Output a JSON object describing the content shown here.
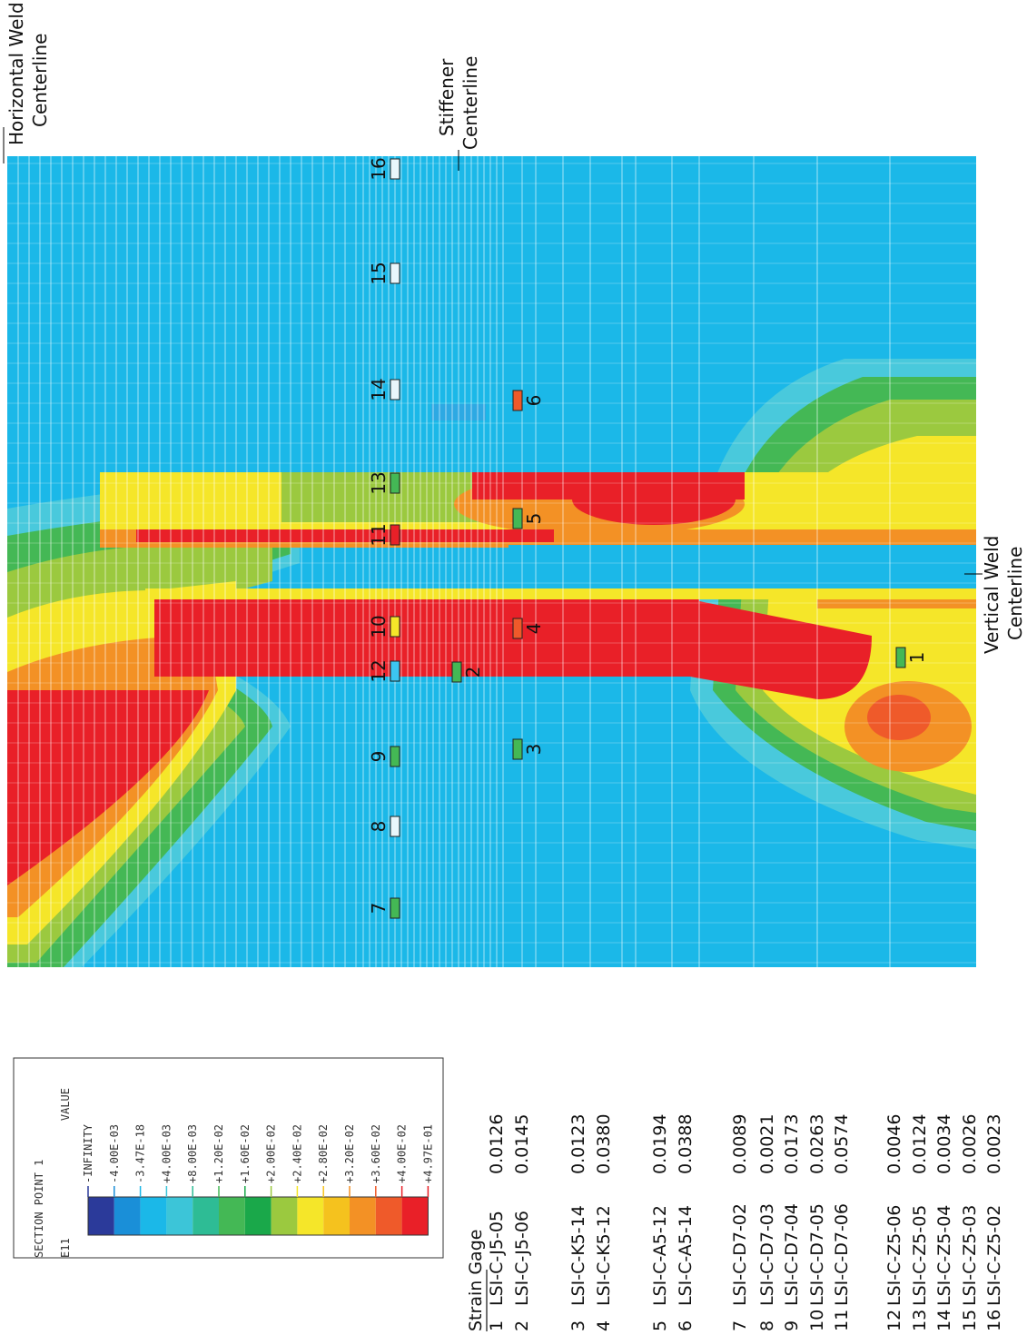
{
  "annotations": {
    "horizontal_weld": {
      "line1": "Horizontal Weld",
      "line2": "Centerline"
    },
    "stiffener": {
      "line1": "Stiffener",
      "line2": "Centerline"
    },
    "vertical_weld": {
      "line1": "Vertical Weld",
      "line2": "Centerline"
    }
  },
  "legend": {
    "section": "SECTION POINT 1",
    "variable": "E11",
    "header": "VALUE",
    "levels": [
      "-INFINITY",
      "-4.00E-03",
      "-3.47E-18",
      "+4.00E-03",
      "+8.00E-03",
      "+1.20E-02",
      "+1.60E-02",
      "+2.00E-02",
      "+2.40E-02",
      "+2.80E-02",
      "+3.20E-02",
      "+3.60E-02",
      "+4.00E-02",
      "+4.97E-01"
    ],
    "colors": [
      "#2b3a9a",
      "#1a8fd8",
      "#1bb8e8",
      "#3cc5d8",
      "#2ebc95",
      "#44b855",
      "#1aa84a",
      "#9bc93f",
      "#f5e629",
      "#f5c21e",
      "#f39125",
      "#ef5a2a",
      "#e92028"
    ]
  },
  "gage_table": {
    "heading": "Strain Gage",
    "rows": [
      {
        "id": 1,
        "name": "LSI-C-J5-05",
        "strain": "0.0126",
        "color": "#44b855"
      },
      {
        "id": 2,
        "name": "LSI-C-J5-06",
        "strain": "0.0145",
        "color": "#44b855"
      },
      {
        "id": 3,
        "name": "LSI-C-K5-14",
        "strain": "0.0123",
        "color": "#44b855"
      },
      {
        "id": 4,
        "name": "LSI-C-K5-12",
        "strain": "0.0380",
        "color": "#ef5a2a"
      },
      {
        "id": 5,
        "name": "LSI-C-A5-12",
        "strain": "0.0194",
        "color": "#44b855"
      },
      {
        "id": 6,
        "name": "LSI-C-A5-14",
        "strain": "0.0388",
        "color": "#ef5a2a"
      },
      {
        "id": 7,
        "name": "LSI-C-D7-02",
        "strain": "0.0089",
        "color": "#44b855"
      },
      {
        "id": 8,
        "name": "LSI-C-D7-03",
        "strain": "0.0021",
        "color": "#e8f6fb"
      },
      {
        "id": 9,
        "name": "LSI-C-D7-04",
        "strain": "0.0173",
        "color": "#44b855"
      },
      {
        "id": 10,
        "name": "LSI-C-D7-05",
        "strain": "0.0263",
        "color": "#f5e629"
      },
      {
        "id": 11,
        "name": "LSI-C-D7-06",
        "strain": "0.0574",
        "color": "#e92028"
      },
      {
        "id": 12,
        "name": "LSI-C-Z5-06",
        "strain": "0.0046",
        "color": "#3cc5f0"
      },
      {
        "id": 13,
        "name": "LSI-C-Z5-05",
        "strain": "0.0124",
        "color": "#44b855"
      },
      {
        "id": 14,
        "name": "LSI-C-Z5-04",
        "strain": "0.0034",
        "color": "#e8f6fb"
      },
      {
        "id": 15,
        "name": "LSI-C-Z5-03",
        "strain": "0.0026",
        "color": "#e8f6fb"
      },
      {
        "id": 16,
        "name": "LSI-C-Z5-02",
        "strain": "0.0023",
        "color": "#e8f6fb"
      }
    ]
  }
}
